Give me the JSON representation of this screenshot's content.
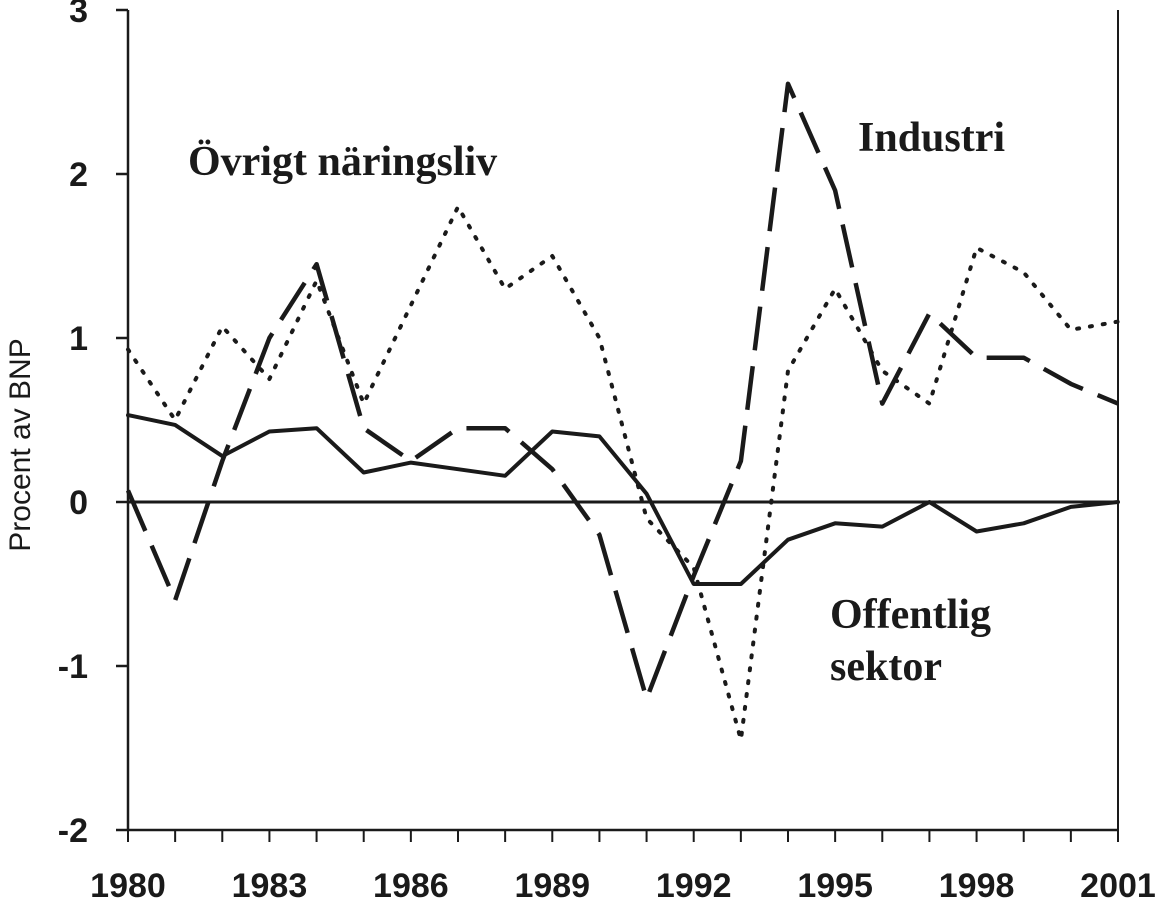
{
  "chart_data": {
    "type": "line",
    "ylabel": "Procent av BNP",
    "xlabel": "",
    "xlim": [
      1980,
      2001
    ],
    "ylim": [
      -2,
      3
    ],
    "y_ticks": [
      "3",
      "2",
      "1",
      "0",
      "-1",
      "-2"
    ],
    "x_tick_labels": [
      "1980",
      "1983",
      "1986",
      "1989",
      "1992",
      "1995",
      "1998",
      "2001"
    ],
    "x": [
      1980,
      1981,
      1982,
      1983,
      1984,
      1985,
      1986,
      1987,
      1988,
      1989,
      1990,
      1991,
      1992,
      1993,
      1994,
      1995,
      1996,
      1997,
      1998,
      1999,
      2000,
      2001
    ],
    "zero_line": true,
    "series": [
      {
        "key": "industri",
        "name": "Industri",
        "style": "dashed",
        "values": [
          0.07,
          -0.6,
          0.25,
          1.0,
          1.45,
          0.45,
          0.25,
          0.45,
          0.45,
          0.2,
          -0.2,
          -1.2,
          -0.45,
          0.25,
          2.55,
          1.9,
          0.6,
          1.15,
          0.88,
          0.88,
          0.72,
          0.6
        ]
      },
      {
        "key": "ovrigt",
        "name": "Övrigt näringsliv",
        "style": "dotted",
        "values": [
          0.93,
          0.5,
          1.07,
          0.75,
          1.35,
          0.6,
          1.2,
          1.8,
          1.3,
          1.5,
          1.0,
          -0.1,
          -0.4,
          -1.45,
          0.8,
          1.3,
          0.8,
          0.6,
          1.55,
          1.4,
          1.05,
          1.1
        ]
      },
      {
        "key": "offentlig",
        "name": "Offentlig sektor",
        "style": "solid",
        "values": [
          0.53,
          0.47,
          0.28,
          0.43,
          0.45,
          0.18,
          0.24,
          0.2,
          0.16,
          0.43,
          0.4,
          0.05,
          -0.5,
          -0.5,
          -0.23,
          -0.13,
          -0.15,
          0.0,
          -0.18,
          -0.13,
          -0.03,
          0.0
        ]
      }
    ],
    "annotations": {
      "ovrigt": "Övrigt näringsliv",
      "industri": "Industri",
      "offentlig_line1": "Offentlig",
      "offentlig_line2": "sektor"
    }
  }
}
